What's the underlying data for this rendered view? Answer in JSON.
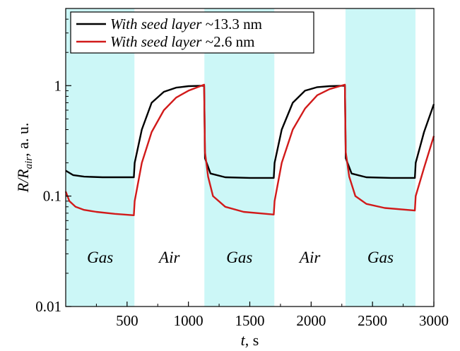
{
  "chart_data": {
    "type": "line",
    "xlabel": "t, s",
    "ylabel": "R/R_air, a. u.",
    "xlim": [
      0,
      3000
    ],
    "ylim": [
      0.01,
      5
    ],
    "yscale": "log",
    "grid": false,
    "legend": "top-left",
    "x_ticks": [
      500,
      1000,
      1500,
      2000,
      2500,
      3000
    ],
    "x_tick_labels": [
      "500",
      "1000",
      "1500",
      "2000",
      "2500",
      "3000"
    ],
    "y_ticks": [
      0.01,
      0.1,
      1
    ],
    "y_tick_labels": [
      "0.01",
      "0.1",
      "1"
    ],
    "regions": [
      {
        "label": "Gas",
        "x": [
          0,
          560
        ],
        "shaded": true
      },
      {
        "label": "Air",
        "x": [
          560,
          1130
        ],
        "shaded": false
      },
      {
        "label": "Gas",
        "x": [
          1130,
          1700
        ],
        "shaded": true
      },
      {
        "label": "Air",
        "x": [
          1700,
          2280
        ],
        "shaded": false
      },
      {
        "label": "Gas",
        "x": [
          2280,
          2850
        ],
        "shaded": true
      }
    ],
    "region_label_y": 0.025,
    "shade_color": "#ccf7f7",
    "series": [
      {
        "name": "With seed layer ~13.3 nm",
        "name_italic": "With seed layer",
        "name_rest": "~13.3 nm",
        "color": "#000000",
        "x": [
          0,
          60,
          150,
          300,
          555,
          562,
          620,
          700,
          800,
          900,
          1000,
          1128,
          1135,
          1180,
          1300,
          1500,
          1695,
          1702,
          1760,
          1850,
          1950,
          2050,
          2150,
          2275,
          2282,
          2330,
          2450,
          2650,
          2845,
          2852,
          2920,
          3000
        ],
        "y": [
          0.17,
          0.155,
          0.15,
          0.148,
          0.148,
          0.2,
          0.4,
          0.7,
          0.88,
          0.96,
          0.99,
          1.0,
          0.22,
          0.16,
          0.148,
          0.146,
          0.146,
          0.2,
          0.4,
          0.7,
          0.9,
          0.97,
          0.99,
          1.0,
          0.22,
          0.16,
          0.148,
          0.146,
          0.146,
          0.2,
          0.38,
          0.68
        ]
      },
      {
        "name": "With seed layer ~2.6 nm",
        "name_italic": "With seed layer",
        "name_rest": "~2.6 nm",
        "color": "#d11a1a",
        "x": [
          0,
          30,
          80,
          150,
          250,
          400,
          555,
          562,
          620,
          700,
          800,
          900,
          1000,
          1128,
          1135,
          1160,
          1200,
          1300,
          1450,
          1695,
          1702,
          1760,
          1850,
          1950,
          2050,
          2150,
          2275,
          2282,
          2310,
          2360,
          2450,
          2600,
          2845,
          2852,
          2920,
          3000
        ],
        "y": [
          0.11,
          0.09,
          0.08,
          0.075,
          0.072,
          0.069,
          0.067,
          0.09,
          0.2,
          0.38,
          0.6,
          0.78,
          0.9,
          1.02,
          0.25,
          0.15,
          0.1,
          0.08,
          0.072,
          0.068,
          0.09,
          0.2,
          0.4,
          0.62,
          0.82,
          0.93,
          1.02,
          0.25,
          0.15,
          0.1,
          0.085,
          0.078,
          0.074,
          0.1,
          0.18,
          0.35
        ]
      }
    ]
  }
}
